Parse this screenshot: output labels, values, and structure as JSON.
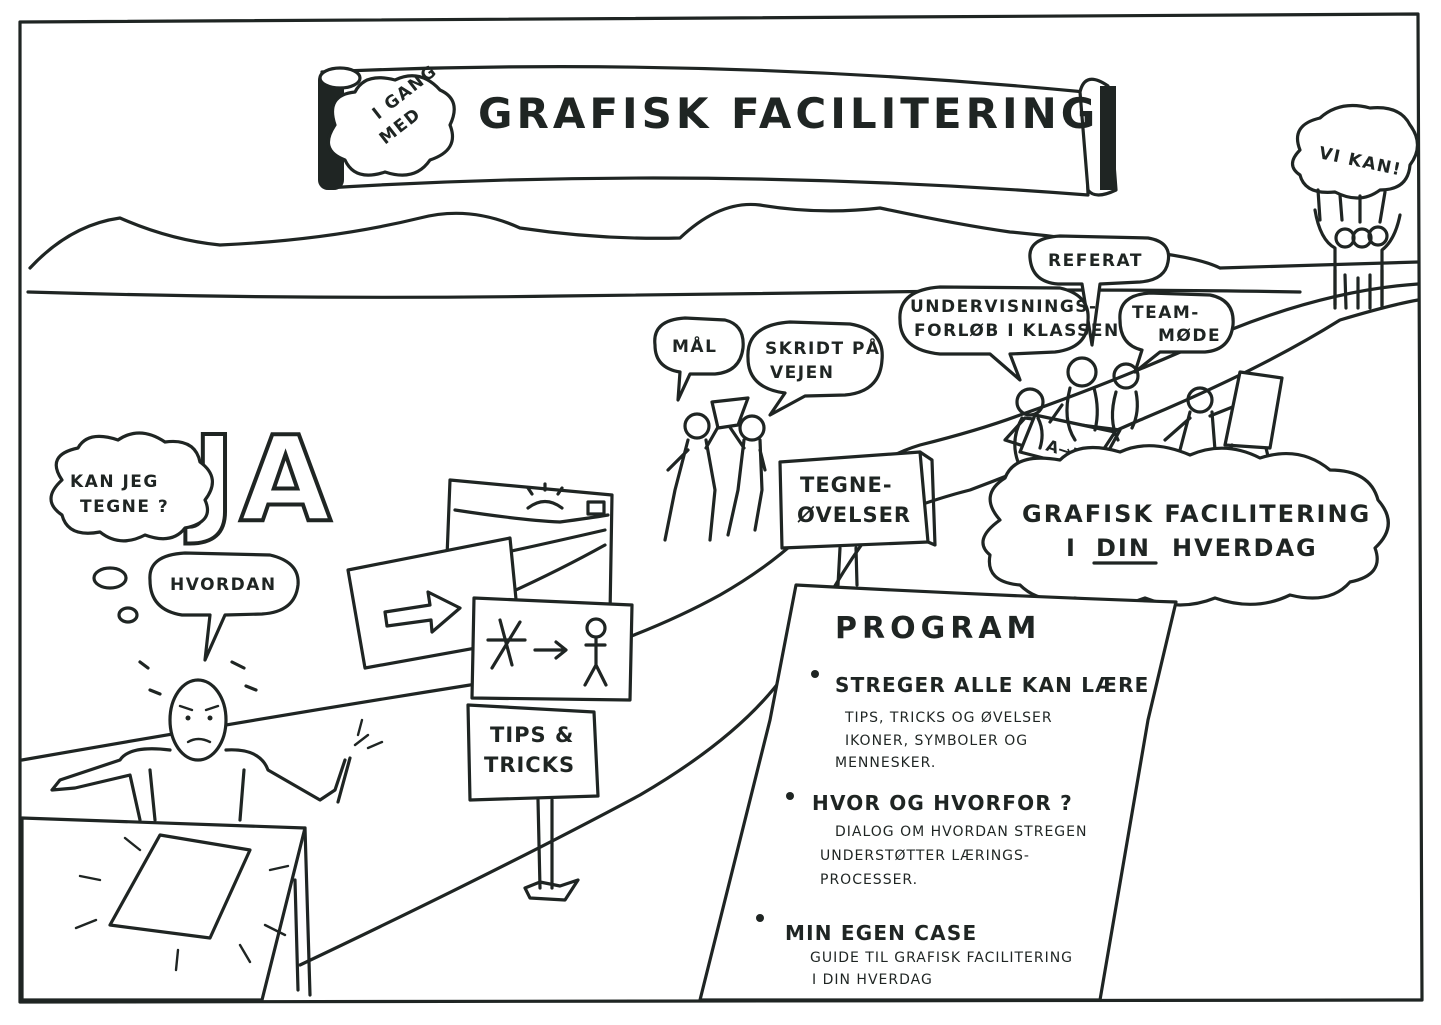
{
  "banner": {
    "tag_line1": "I GANG",
    "tag_line2": "MED",
    "title": "GRAFISK FACILITERING"
  },
  "bubbles": {
    "vi_kan": "VI KAN!",
    "referat": "REFERAT",
    "undervisning_line1": "UNDERVISNINGS-",
    "undervisning_line2": "FORLØB I KLASSEN",
    "teammode_line1": "TEAM-",
    "teammode_line2": "MØDE",
    "maal": "MÅL",
    "skridt_line1": "SKRIDT PÅ",
    "skridt_line2": "VEJEN",
    "kan_jeg_line1": "KAN JEG",
    "kan_jeg_line2": "TEGNE ?",
    "hvordan": "HVORDAN"
  },
  "big_answer": "JA",
  "signs": {
    "tips_line1": "TIPS &",
    "tips_line2": "TRICKS",
    "tegne_line1": "TEGNE-",
    "tegne_line2": "ØVELSER",
    "board_label": "A→B"
  },
  "cloud": {
    "line1": "GRAFISK FACILITERING",
    "line2_pre": "I",
    "line2_emph": "DIN",
    "line2_post": "HVERDAG"
  },
  "program": {
    "heading": "PROGRAM",
    "items": [
      {
        "title": "STREGER ALLE KAN LÆRE",
        "sub": [
          "TIPS, TRICKS OG ØVELSER",
          "IKONER, SYMBOLER OG",
          "MENNESKER."
        ]
      },
      {
        "title": "HVOR OG HVORFOR ?",
        "sub": [
          "DIALOG OM HVORDAN STREGEN",
          "UNDERSTØTTER LÆRINGS-",
          "PROCESSER."
        ]
      },
      {
        "title": "MIN EGEN CASE",
        "sub": [
          "GUIDE TIL GRAFISK FACILITERING",
          "I DIN HVERDAG"
        ]
      }
    ]
  }
}
